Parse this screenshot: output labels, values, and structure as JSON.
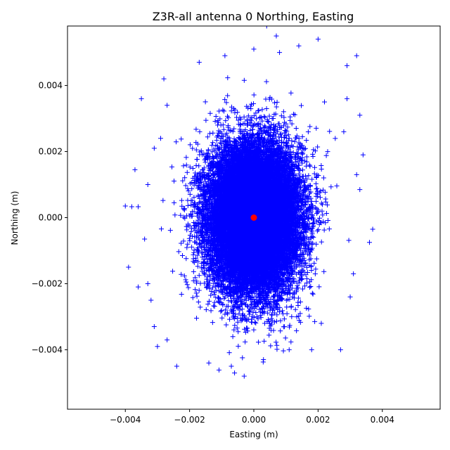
{
  "chart_data": {
    "type": "scatter",
    "title": "Z3R-all antenna 0 Northing, Easting",
    "xlabel": "Easting (m)",
    "ylabel": "Northing (m)",
    "xlim": [
      -0.0058,
      0.0058
    ],
    "ylim": [
      -0.0058,
      0.0058
    ],
    "xticks": [
      -0.004,
      -0.002,
      0.0,
      0.002,
      0.004
    ],
    "xtick_labels": [
      "−0.004",
      "−0.002",
      "0.000",
      "0.002",
      "0.004"
    ],
    "yticks": [
      -0.004,
      -0.002,
      0.0,
      0.002,
      0.004
    ],
    "ytick_labels": [
      "−0.004",
      "−0.002",
      "0.000",
      "0.002",
      "0.004"
    ],
    "grid": false,
    "series": [
      {
        "marker": "plus",
        "color": "#0000ff",
        "cloud": {
          "center": [
            0.0,
            0.0
          ],
          "std": [
            0.0007,
            0.0011
          ],
          "count": 20000
        },
        "outliers": [
          [
            -0.004,
            0.00035
          ],
          [
            -0.0038,
            0.00033
          ],
          [
            -0.0036,
            0.00033
          ],
          [
            -0.0037,
            0.00145
          ],
          [
            -0.0035,
            0.0036
          ],
          [
            -0.0039,
            -0.0015
          ],
          [
            -0.0036,
            -0.0021
          ],
          [
            -0.0033,
            -0.002
          ],
          [
            -0.0034,
            -0.00065
          ],
          [
            -0.0032,
            -0.0025
          ],
          [
            -0.0031,
            -0.0033
          ],
          [
            -0.003,
            -0.0039
          ],
          [
            -0.0028,
            0.0042
          ],
          [
            -0.0027,
            0.0034
          ],
          [
            -0.0024,
            -0.0045
          ],
          [
            -0.0017,
            0.0047
          ],
          [
            -0.0014,
            -0.0044
          ],
          [
            -0.0009,
            0.0049
          ],
          [
            -0.0007,
            -0.0045
          ],
          [
            -0.0006,
            -0.0047
          ],
          [
            -0.0003,
            -0.0048
          ],
          [
            0.0,
            0.0051
          ],
          [
            0.0004,
            0.0058
          ],
          [
            0.0007,
            0.0055
          ],
          [
            0.0008,
            0.005
          ],
          [
            0.0014,
            0.0052
          ],
          [
            0.002,
            0.0054
          ],
          [
            0.0029,
            0.0046
          ],
          [
            0.0032,
            0.0049
          ],
          [
            0.0033,
            0.0031
          ],
          [
            0.0034,
            0.0019
          ],
          [
            0.0037,
            -0.00035
          ],
          [
            0.0033,
            0.00085
          ],
          [
            0.0036,
            -0.00075
          ],
          [
            0.0031,
            -0.0017
          ],
          [
            0.003,
            -0.0024
          ],
          [
            0.0027,
            -0.004
          ],
          [
            0.0018,
            -0.004
          ],
          [
            0.0011,
            -0.004
          ],
          [
            0.0003,
            -0.0043
          ],
          [
            0.0029,
            0.0036
          ],
          [
            -0.0029,
            0.0024
          ],
          [
            -0.0031,
            0.0021
          ],
          [
            -0.0033,
            0.001
          ],
          [
            0.0021,
            -0.0032
          ],
          [
            -0.0027,
            -0.0037
          ],
          [
            0.0028,
            0.0026
          ],
          [
            0.0032,
            0.0013
          ]
        ]
      },
      {
        "marker": "circle",
        "color": "#ff0000",
        "points": [
          [
            0.0,
            0.0
          ]
        ]
      }
    ]
  }
}
